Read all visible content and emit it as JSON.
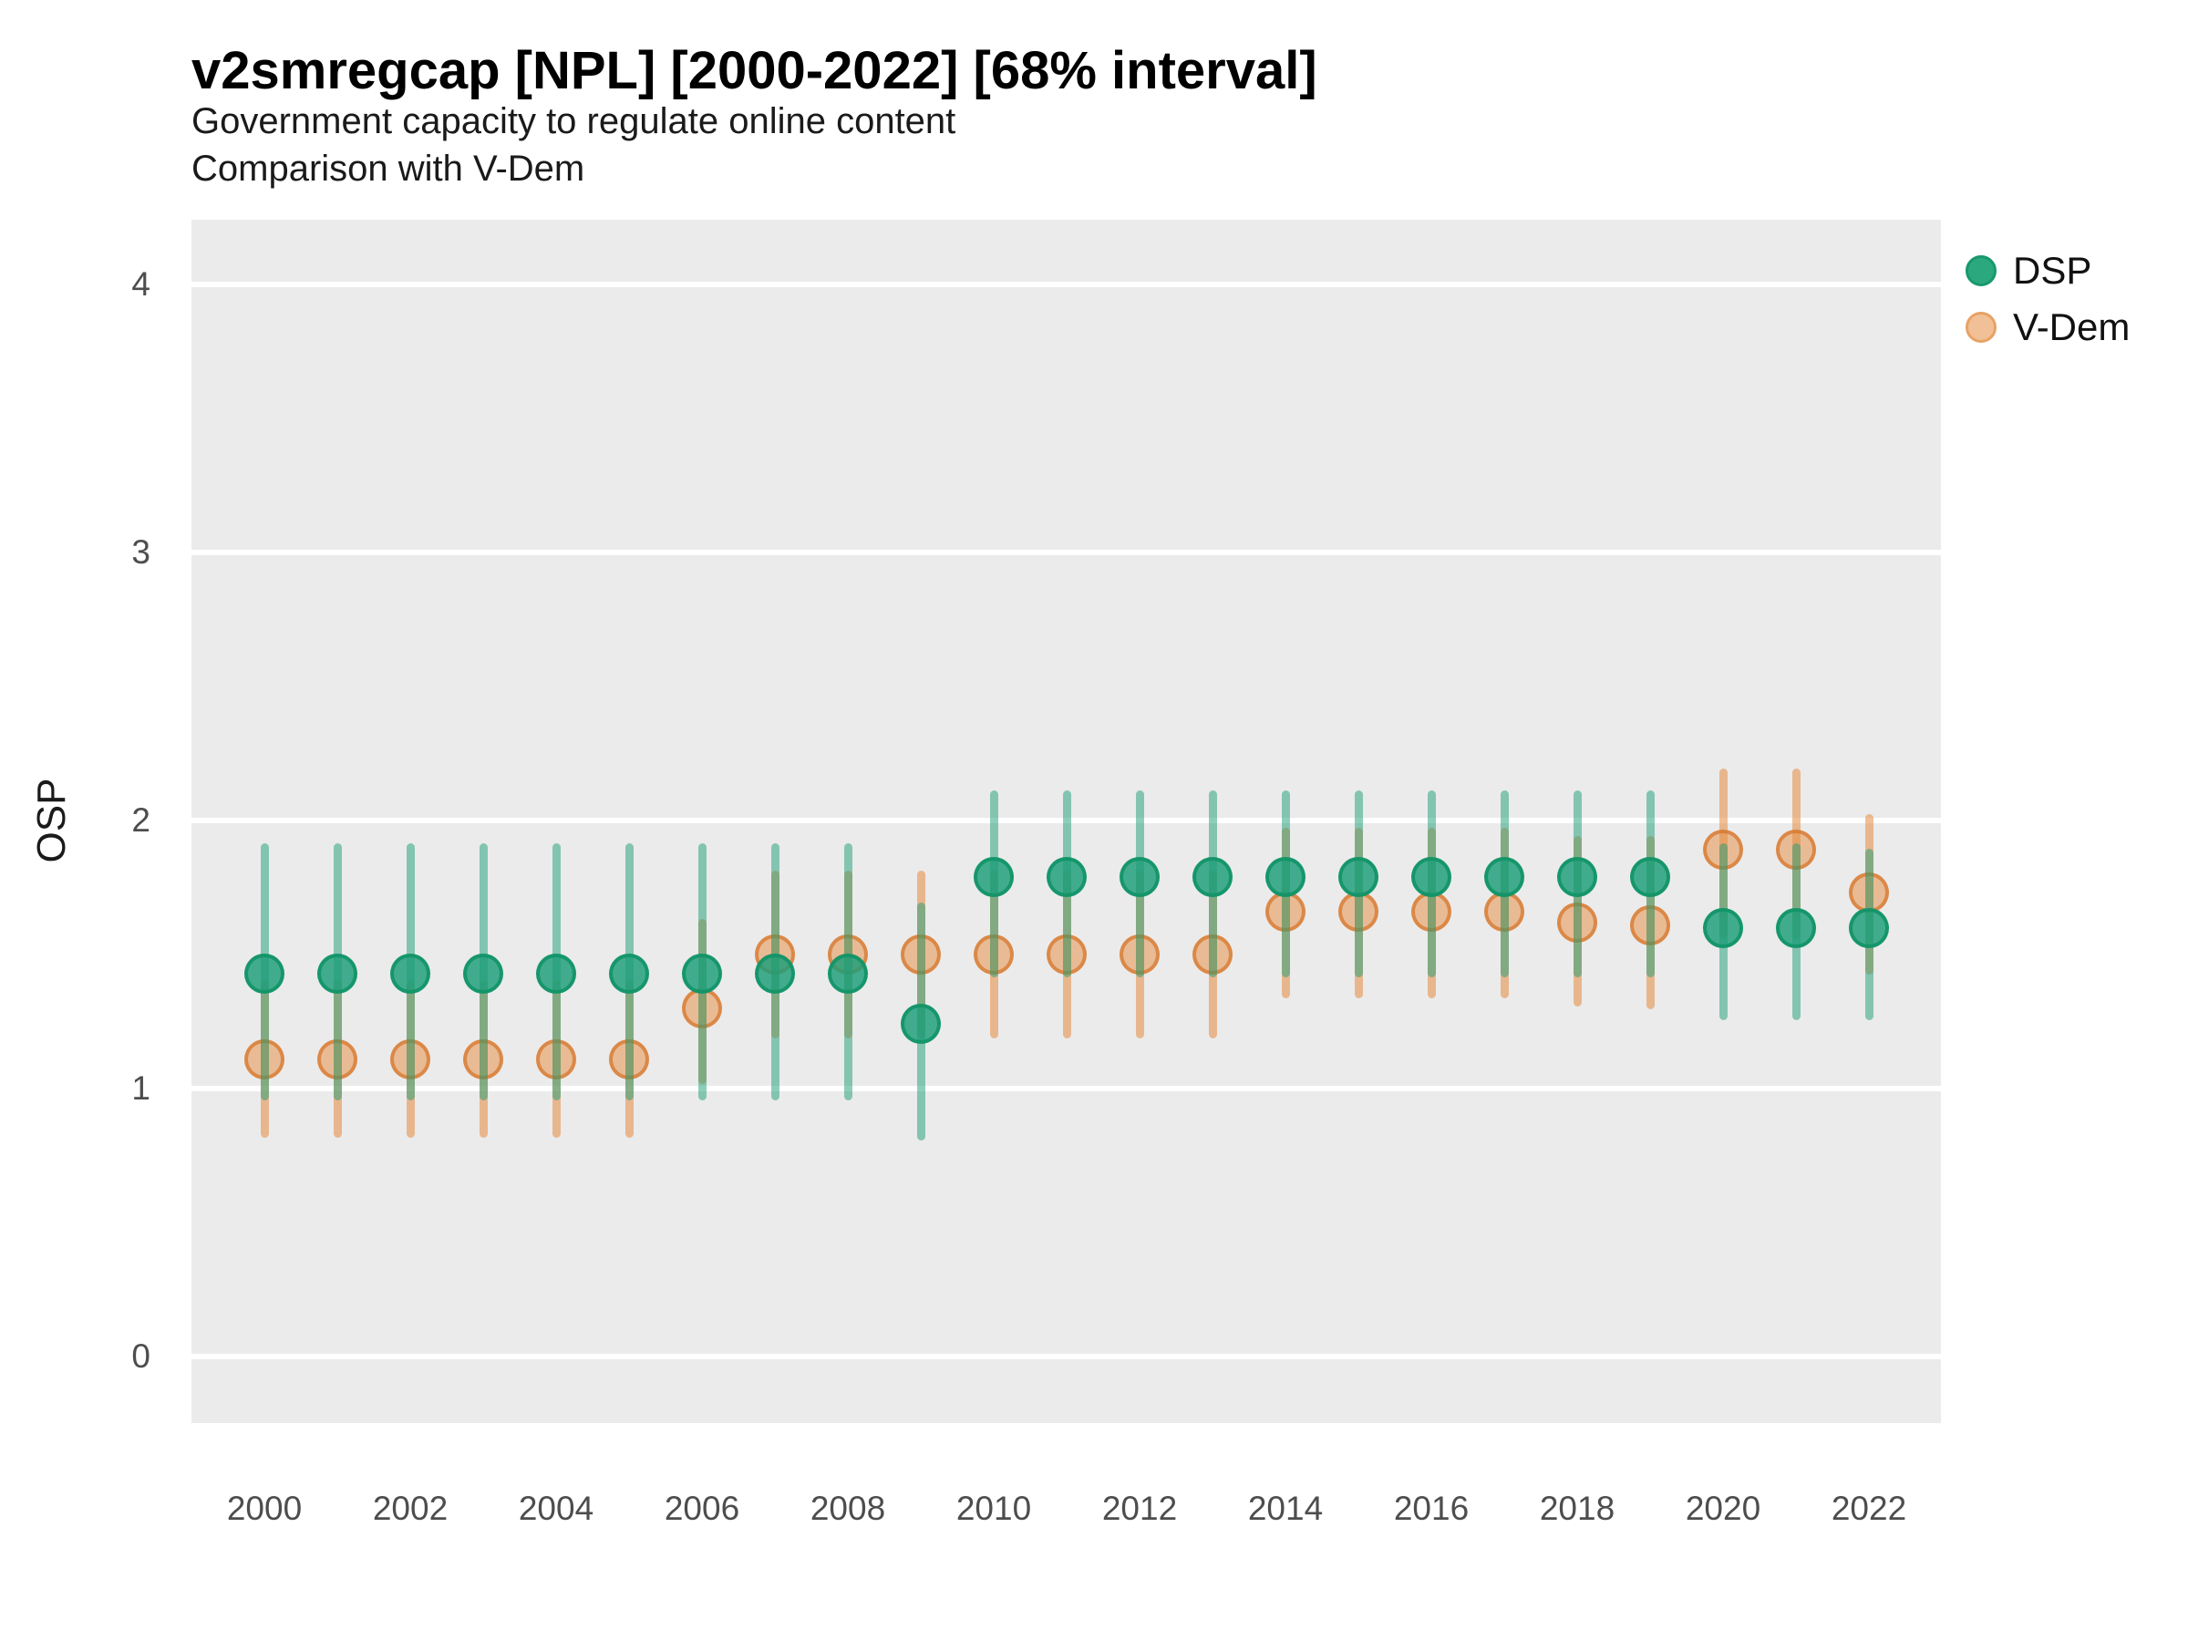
{
  "header": {
    "title": "v2smregcap [NPL] [2000-2022] [68% interval]",
    "subtitle": "Government capacity to regulate online content",
    "subtitle2": "Comparison with V-Dem"
  },
  "axes": {
    "y": {
      "title": "OSP",
      "ticks": [
        0,
        1,
        2,
        3,
        4
      ],
      "range": [
        -0.25,
        4.25
      ]
    },
    "x": {
      "tick_years": [
        2000,
        2002,
        2004,
        2006,
        2008,
        2010,
        2012,
        2014,
        2016,
        2018,
        2020,
        2022
      ],
      "range": [
        1999,
        2023
      ]
    }
  },
  "legend": {
    "items": [
      {
        "label": "DSP",
        "swatch_fill": "#2CA87E",
        "swatch_stroke": "#17996B"
      },
      {
        "label": "V-Dem",
        "swatch_fill": "#F2C096",
        "swatch_stroke": "#E7A266"
      }
    ]
  },
  "colors": {
    "dsp": "#1B9E77",
    "vdem": "#E68B40",
    "panel_bg": "#EBEBEB",
    "gridline": "#FFFFFF",
    "tick_label": "#4D4D4D",
    "dsp_bar": "rgba(27,158,119,0.50)",
    "dsp_dot_fill": "rgba(27,158,119,0.82)",
    "dsp_dot_stroke": "rgba(18,148,104,0.90)",
    "vdem_bar": "rgba(230,139,64,0.55)",
    "vdem_dot_fill": "rgba(230,139,64,0.50)",
    "vdem_dot_stroke": "rgba(214,117,40,0.72)"
  },
  "chart_data": {
    "type": "scatter",
    "title": "v2smregcap [NPL] [2000-2022] [68% interval]",
    "subtitle": "Government capacity to regulate online content",
    "caption": "Comparison with V-Dem",
    "interval": "68%",
    "xlabel": "",
    "ylabel": "OSP",
    "ylim": [
      -0.25,
      4.25
    ],
    "grid": true,
    "legend_position": "right",
    "x": [
      2000,
      2001,
      2002,
      2003,
      2004,
      2005,
      2006,
      2007,
      2008,
      2009,
      2010,
      2011,
      2012,
      2013,
      2014,
      2015,
      2016,
      2017,
      2018,
      2019,
      2020,
      2021,
      2022
    ],
    "series": [
      {
        "name": "V-Dem",
        "values": [
          1.11,
          1.11,
          1.11,
          1.11,
          1.11,
          1.11,
          1.3,
          1.5,
          1.5,
          1.5,
          1.5,
          1.5,
          1.5,
          1.5,
          1.66,
          1.66,
          1.66,
          1.66,
          1.62,
          1.61,
          1.89,
          1.89,
          1.73
        ],
        "low": [
          0.83,
          0.83,
          0.83,
          0.83,
          0.83,
          0.83,
          1.03,
          1.2,
          1.2,
          1.2,
          1.2,
          1.2,
          1.2,
          1.2,
          1.35,
          1.35,
          1.35,
          1.35,
          1.32,
          1.31,
          1.57,
          1.57,
          1.44
        ],
        "high": [
          1.39,
          1.39,
          1.39,
          1.39,
          1.39,
          1.39,
          1.62,
          1.8,
          1.8,
          1.8,
          1.8,
          1.8,
          1.8,
          1.8,
          1.96,
          1.96,
          1.96,
          1.96,
          1.93,
          1.93,
          2.18,
          2.18,
          2.01
        ]
      },
      {
        "name": "DSP",
        "values": [
          1.43,
          1.43,
          1.43,
          1.43,
          1.43,
          1.43,
          1.43,
          1.43,
          1.43,
          1.24,
          1.79,
          1.79,
          1.79,
          1.79,
          1.79,
          1.79,
          1.79,
          1.79,
          1.79,
          1.79,
          1.6,
          1.6,
          1.6
        ],
        "low": [
          0.97,
          0.97,
          0.97,
          0.97,
          0.97,
          0.97,
          0.97,
          0.97,
          0.97,
          0.82,
          1.43,
          1.43,
          1.43,
          1.43,
          1.43,
          1.43,
          1.43,
          1.43,
          1.43,
          1.43,
          1.27,
          1.27,
          1.27
        ],
        "high": [
          1.9,
          1.9,
          1.9,
          1.9,
          1.9,
          1.9,
          1.9,
          1.9,
          1.9,
          1.68,
          2.1,
          2.1,
          2.1,
          2.1,
          2.1,
          2.1,
          2.1,
          2.1,
          2.1,
          2.1,
          1.9,
          1.9,
          1.88
        ]
      }
    ]
  }
}
